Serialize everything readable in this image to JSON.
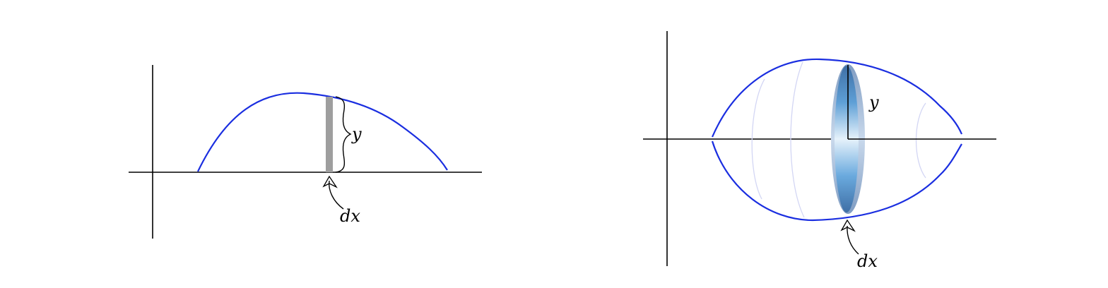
{
  "colors": {
    "curve": "#1a2ee0",
    "axis": "#000000",
    "strip": "#9e9e9e",
    "disk_light": "#e4f1fb",
    "disk_mid": "#6aaade",
    "disk_dark": "#3f78b4",
    "ghost_ring": "#c8ccf2"
  },
  "left_figure": {
    "height_label": "y",
    "width_label": "dx"
  },
  "right_figure": {
    "radius_label": "y",
    "width_label": "dx"
  }
}
